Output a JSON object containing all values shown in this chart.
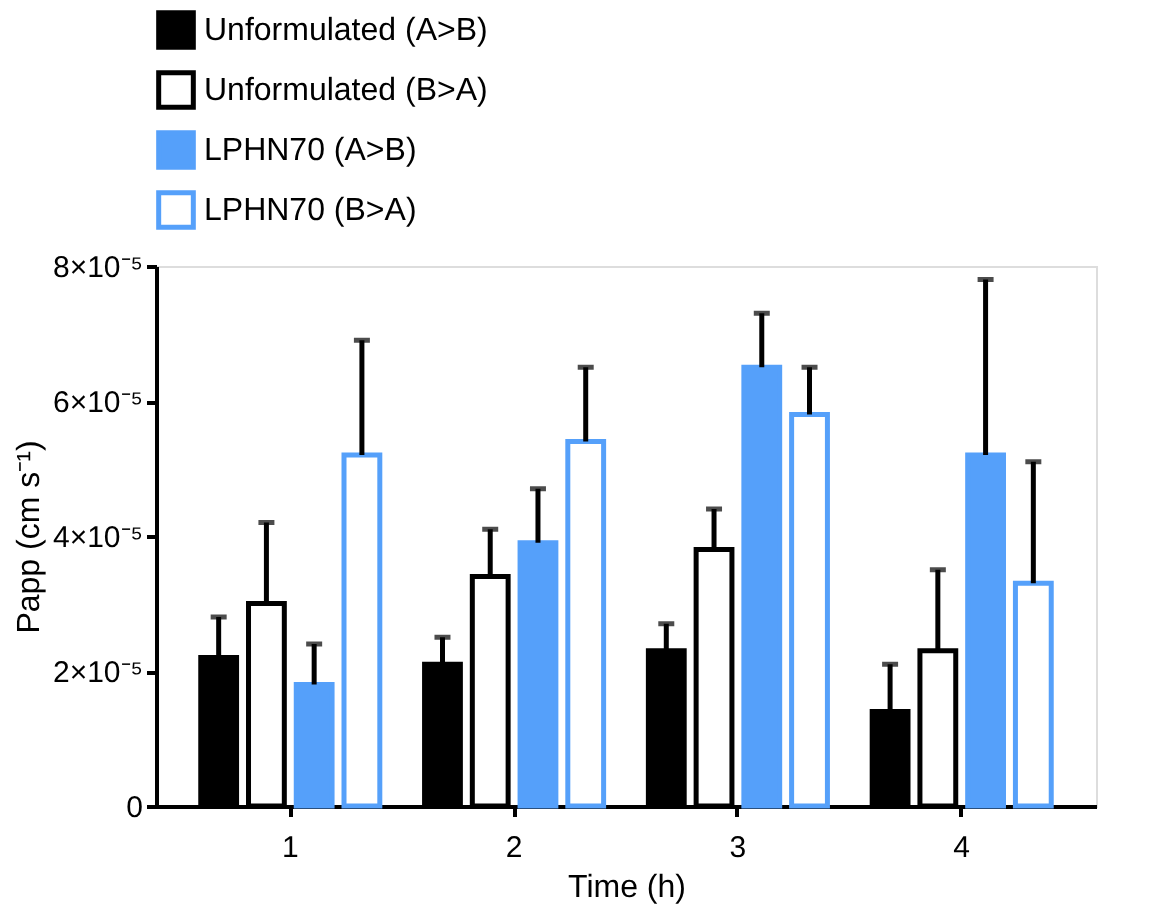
{
  "chart_data": {
    "type": "bar",
    "xlabel": "Time (h)",
    "ylabel": "Papp (cm s⁻¹)",
    "categories": [
      "1",
      "2",
      "3",
      "4"
    ],
    "series": [
      {
        "name": "Unformulated (A>B)",
        "color": "#000000",
        "colors": [
          "#000000",
          "#000000",
          "#000000",
          "#000000"
        ],
        "values": [
          2.2e-05,
          2.1e-05,
          2.3e-05,
          1.4e-05
        ],
        "errors": [
          [
            2.2e-05,
            2.8e-05
          ],
          [
            2.1e-05,
            2.5e-05
          ],
          [
            2.3e-05,
            2.7e-05
          ],
          [
            1.4e-05,
            2.1e-05
          ]
        ]
      },
      {
        "name": "Unformulated (B>A)",
        "color": "#000000",
        "colors": [
          "#ffffff",
          "#ffffff",
          "#ffffff",
          "#ffffff"
        ],
        "values": [
          3e-05,
          3.4e-05,
          3.8e-05,
          2.3e-05
        ],
        "errors": [
          [
            3e-05,
            4.2e-05
          ],
          [
            3.4e-05,
            4.1e-05
          ],
          [
            3.8e-05,
            4.4e-05
          ],
          [
            2.3e-05,
            3.5e-05
          ]
        ]
      },
      {
        "name": "LPHN70 (A>B)",
        "color": "#55a0fa",
        "colors": [
          "#55a0fa",
          "#55a0fa",
          "#55a0fa",
          "#55a0fa"
        ],
        "values": [
          1.8e-05,
          3.9e-05,
          6.5e-05,
          5.2e-05
        ],
        "errors": [
          [
            1.8e-05,
            2.4e-05
          ],
          [
            3.9e-05,
            4.7e-05
          ],
          [
            6.5e-05,
            7.3e-05
          ],
          [
            5.2e-05,
            7.8e-05
          ]
        ]
      },
      {
        "name": "LPHN70 (B>A)",
        "color": "#55a0fa",
        "colors": [
          "#ffffff",
          "#ffffff",
          "#ffffff",
          "#ffffff"
        ],
        "values": [
          5.2e-05,
          5.4e-05,
          5.8e-05,
          3.3e-05
        ],
        "errors": [
          [
            5.2e-05,
            6.9e-05
          ],
          [
            5.4e-05,
            6.5e-05
          ],
          [
            5.8e-05,
            6.5e-05
          ],
          [
            3.3e-05,
            5.1e-05
          ]
        ]
      }
    ],
    "ylim": [
      0,
      8e-05
    ],
    "yticks": [
      0,
      {
        "value": 2e-05,
        "label": "2×10⁻⁵"
      },
      {
        "value": 4e-05,
        "label": "4×10⁻⁵"
      },
      {
        "value": 6e-05,
        "label": "6×10⁻⁵"
      },
      {
        "value": 8e-05,
        "label": "8×10⁻⁵"
      }
    ],
    "grid": false,
    "legend": "top"
  }
}
